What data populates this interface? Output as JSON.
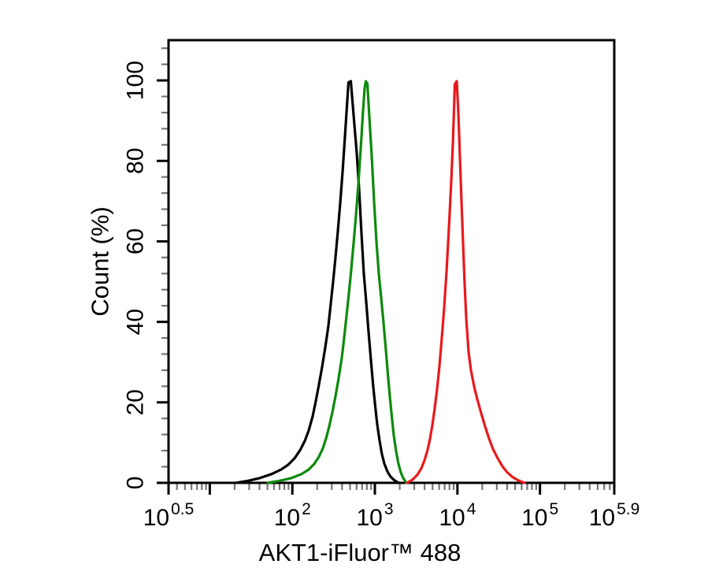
{
  "figure": {
    "background": "#ffffff"
  },
  "chart_data": {
    "type": "line",
    "subtype": "flow-cytometry-overlay-histogram",
    "title": "",
    "xlabel": "AKT1-iFluor™ 488",
    "ylabel": "Count (%)",
    "x_scale": "log10",
    "xlim_log10": [
      0.5,
      5.9
    ],
    "ylim": [
      0,
      110
    ],
    "grid": false,
    "legend": null,
    "frame": true,
    "colors": {
      "axis": "#000000",
      "minor_tick": "#777777",
      "background": "#ffffff"
    },
    "x_axis": {
      "base_label": "10",
      "labeled_ticks": [
        {
          "log10": 0.5,
          "exponent": "0.5"
        },
        {
          "log10": 2,
          "exponent": "2"
        },
        {
          "log10": 3,
          "exponent": "3"
        },
        {
          "log10": 4,
          "exponent": "4"
        },
        {
          "log10": 5,
          "exponent": "5"
        },
        {
          "log10": 5.9,
          "exponent": "5.9"
        }
      ],
      "major_ticks_log10": [
        0.5,
        1,
        2,
        3,
        4,
        5,
        5.9
      ],
      "minor_ticks": "log-decade-multiples-2-to-9"
    },
    "y_axis": {
      "major_ticks": [
        0,
        20,
        40,
        60,
        80,
        100
      ],
      "tick_labels": [
        "0",
        "20",
        "40",
        "60",
        "80",
        "100"
      ],
      "minor_tick_step": 4,
      "minor_tick_max": 108
    },
    "series": [
      {
        "name": "black",
        "color": "#000000",
        "peak_log10": 2.69,
        "peak_percent": 100,
        "points": [
          [
            1.32,
            0
          ],
          [
            1.464,
            0.5
          ],
          [
            1.607,
            1.2
          ],
          [
            1.75,
            2.2
          ],
          [
            1.864,
            3.3
          ],
          [
            1.95,
            4.5
          ],
          [
            2.027,
            6.1
          ],
          [
            2.093,
            8.1
          ],
          [
            2.151,
            10.4
          ],
          [
            2.198,
            13.0
          ],
          [
            2.246,
            16.5
          ],
          [
            2.284,
            20.3
          ],
          [
            2.322,
            24.4
          ],
          [
            2.36,
            28.8
          ],
          [
            2.399,
            33.6
          ],
          [
            2.437,
            39.0
          ],
          [
            2.465,
            44.5
          ],
          [
            2.494,
            50.0
          ],
          [
            2.523,
            56.0
          ],
          [
            2.551,
            62.5
          ],
          [
            2.58,
            69.5
          ],
          [
            2.608,
            77.0
          ],
          [
            2.628,
            83.0
          ],
          [
            2.647,
            89.0
          ],
          [
            2.666,
            95.0
          ],
          [
            2.68,
            99.5
          ],
          [
            2.709,
            99.8
          ],
          [
            2.728,
            95.0
          ],
          [
            2.752,
            89.0
          ],
          [
            2.78,
            82.0
          ],
          [
            2.809,
            73.0
          ],
          [
            2.837,
            62.0
          ],
          [
            2.866,
            52.0
          ],
          [
            2.895,
            45.0
          ],
          [
            2.923,
            37.5
          ],
          [
            2.952,
            30.5
          ],
          [
            2.98,
            24.0
          ],
          [
            3.004,
            19.0
          ],
          [
            3.028,
            14.5
          ],
          [
            3.057,
            10.5
          ],
          [
            3.085,
            7.2
          ],
          [
            3.114,
            4.8
          ],
          [
            3.152,
            2.8
          ],
          [
            3.19,
            1.5
          ],
          [
            3.238,
            0.6
          ],
          [
            3.286,
            0
          ]
        ]
      },
      {
        "name": "green",
        "color": "#0c8a0c",
        "peak_log10": 2.89,
        "peak_percent": 100,
        "points": [
          [
            1.702,
            0
          ],
          [
            1.845,
            0.5
          ],
          [
            1.988,
            1.2
          ],
          [
            2.112,
            2.2
          ],
          [
            2.198,
            3.3
          ],
          [
            2.265,
            4.7
          ],
          [
            2.322,
            6.5
          ],
          [
            2.37,
            8.6
          ],
          [
            2.408,
            11.0
          ],
          [
            2.446,
            14.0
          ],
          [
            2.484,
            17.5
          ],
          [
            2.523,
            21.5
          ],
          [
            2.561,
            26.0
          ],
          [
            2.599,
            31.0
          ],
          [
            2.628,
            36.0
          ],
          [
            2.656,
            41.5
          ],
          [
            2.685,
            47.0
          ],
          [
            2.713,
            53.0
          ],
          [
            2.742,
            59.5
          ],
          [
            2.771,
            66.5
          ],
          [
            2.799,
            74.0
          ],
          [
            2.818,
            80.0
          ],
          [
            2.837,
            86.0
          ],
          [
            2.857,
            92.5
          ],
          [
            2.876,
            98.0
          ],
          [
            2.89,
            99.8
          ],
          [
            2.909,
            99.2
          ],
          [
            2.933,
            91.0
          ],
          [
            2.962,
            81.0
          ],
          [
            2.99,
            70.0
          ],
          [
            3.019,
            60.0
          ],
          [
            3.047,
            52.0
          ],
          [
            3.076,
            46.0
          ],
          [
            3.104,
            40.0
          ],
          [
            3.133,
            33.0
          ],
          [
            3.157,
            27.0
          ],
          [
            3.181,
            21.5
          ],
          [
            3.205,
            16.5
          ],
          [
            3.228,
            12.0
          ],
          [
            3.257,
            7.8
          ],
          [
            3.285,
            4.8
          ],
          [
            3.314,
            2.6
          ],
          [
            3.343,
            1.2
          ],
          [
            3.381,
            0
          ]
        ]
      },
      {
        "name": "red",
        "color": "#e8191d",
        "peak_log10": 3.96,
        "peak_percent": 100,
        "points": [
          [
            3.391,
            0
          ],
          [
            3.458,
            0.8
          ],
          [
            3.515,
            2.0
          ],
          [
            3.563,
            3.6
          ],
          [
            3.601,
            5.6
          ],
          [
            3.639,
            8.2
          ],
          [
            3.668,
            11.0
          ],
          [
            3.696,
            14.3
          ],
          [
            3.725,
            18.5
          ],
          [
            3.753,
            23.3
          ],
          [
            3.782,
            29.0
          ],
          [
            3.811,
            36.0
          ],
          [
            3.839,
            43.5
          ],
          [
            3.868,
            52.5
          ],
          [
            3.887,
            59.5
          ],
          [
            3.906,
            67.0
          ],
          [
            3.925,
            75.0
          ],
          [
            3.944,
            84.0
          ],
          [
            3.958,
            92.0
          ],
          [
            3.968,
            99.0
          ],
          [
            3.992,
            99.8
          ],
          [
            4.011,
            92.0
          ],
          [
            4.03,
            81.0
          ],
          [
            4.049,
            70.0
          ],
          [
            4.068,
            59.5
          ],
          [
            4.087,
            49.5
          ],
          [
            4.106,
            41.0
          ],
          [
            4.135,
            32.5
          ],
          [
            4.164,
            28.0
          ],
          [
            4.202,
            24.0
          ],
          [
            4.24,
            20.8
          ],
          [
            4.288,
            17.3
          ],
          [
            4.335,
            14.0
          ],
          [
            4.383,
            11.0
          ],
          [
            4.431,
            8.4
          ],
          [
            4.488,
            6.1
          ],
          [
            4.545,
            4.1
          ],
          [
            4.603,
            2.6
          ],
          [
            4.669,
            1.4
          ],
          [
            4.736,
            0.6
          ],
          [
            4.812,
            0
          ]
        ]
      }
    ]
  }
}
